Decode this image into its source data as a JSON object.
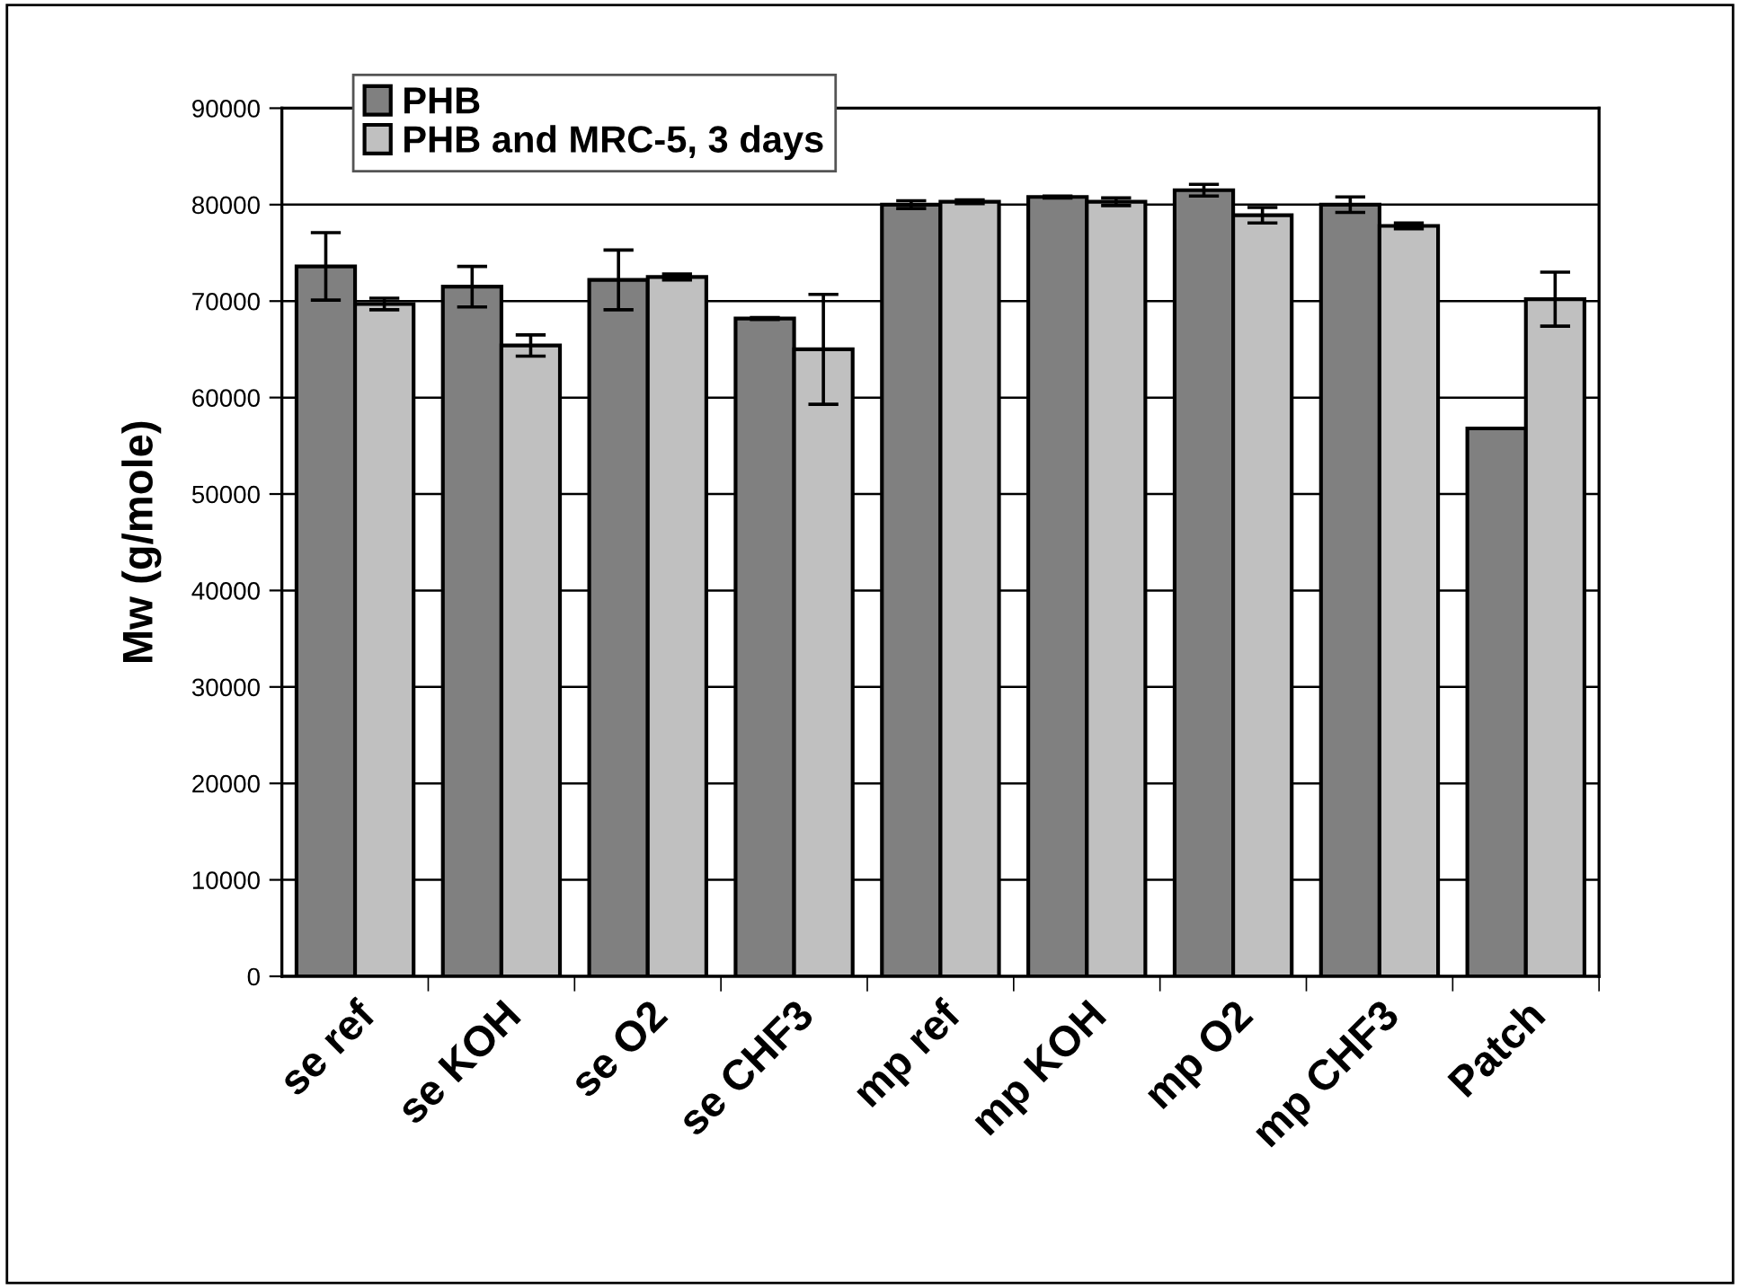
{
  "chart_data": {
    "type": "bar",
    "ylabel": "Mw (g/mole)",
    "categories": [
      "se ref",
      "se KOH",
      "se O2",
      "se CHF3",
      "mp ref",
      "mp KOH",
      "mp O2",
      "mp CHF3",
      "Patch"
    ],
    "series": [
      {
        "name": "PHB",
        "color": "#808080",
        "values": [
          73600,
          71500,
          72200,
          68200,
          80000,
          80800,
          81500,
          80000,
          56800
        ],
        "errors": [
          3500,
          2100,
          3100,
          100,
          400,
          100,
          600,
          800,
          null
        ]
      },
      {
        "name": "PHB and MRC-5, 3 days",
        "color": "#c0c0c0",
        "values": [
          69700,
          65400,
          72500,
          65000,
          80300,
          80300,
          78900,
          77800,
          70200
        ],
        "errors": [
          600,
          1100,
          300,
          5700,
          200,
          400,
          800,
          300,
          2800
        ]
      }
    ],
    "ylim": [
      0,
      90000
    ],
    "yticks": [
      0,
      10000,
      20000,
      30000,
      40000,
      50000,
      60000,
      70000,
      80000,
      90000
    ],
    "grid": "y",
    "legend": "top left"
  }
}
